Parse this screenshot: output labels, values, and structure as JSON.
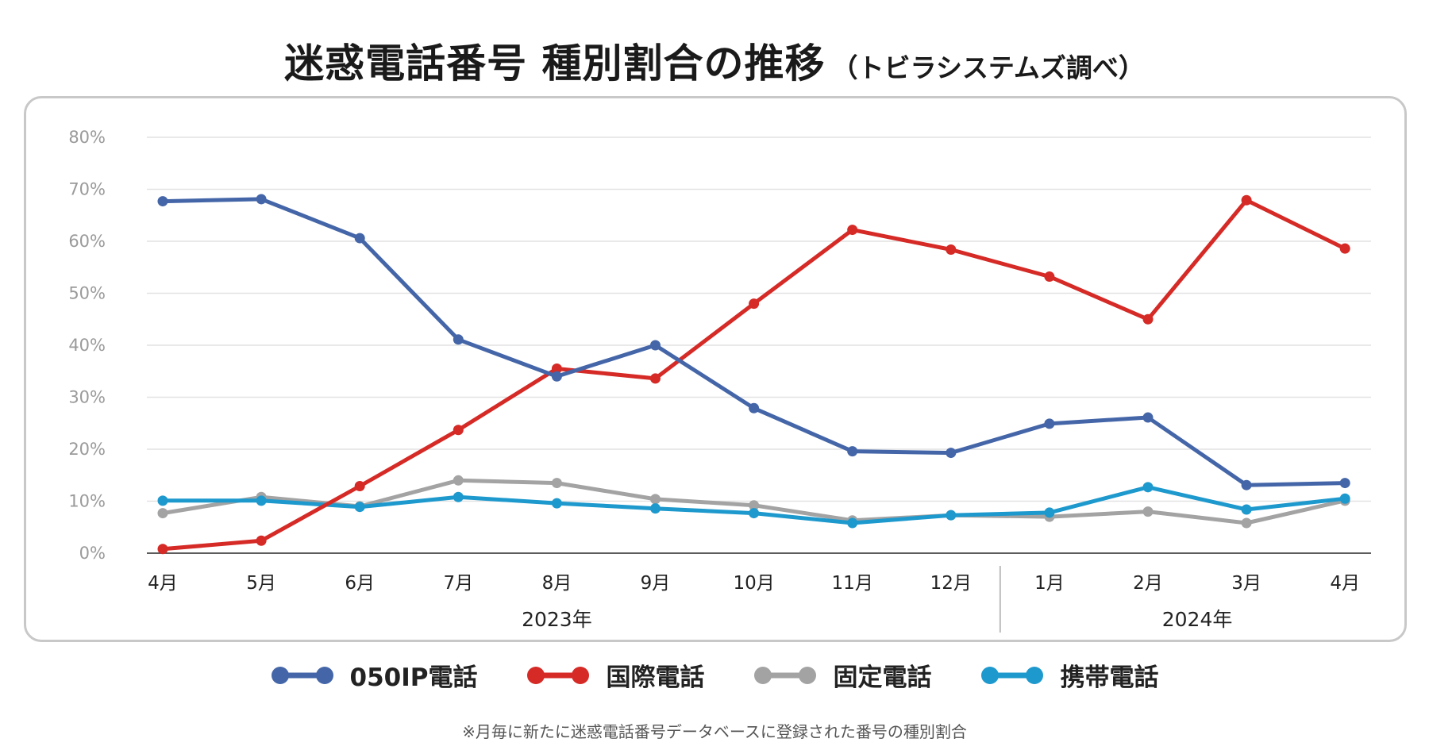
{
  "header": {
    "title": "迷惑電話番号 種別割合の推移",
    "subtitle": "（トビラシステムズ調べ）"
  },
  "footnote": "※月毎に新たに迷惑電話番号データベースに登録された番号の種別割合",
  "chart_data": {
    "type": "line",
    "title": "迷惑電話番号 種別割合の推移",
    "categories": [
      "4月",
      "5月",
      "6月",
      "7月",
      "8月",
      "9月",
      "10月",
      "11月",
      "12月",
      "1月",
      "2月",
      "3月",
      "4月"
    ],
    "year_groups": [
      {
        "label": "2023年",
        "start": 0,
        "end": 8
      },
      {
        "label": "2024年",
        "start": 9,
        "end": 12
      }
    ],
    "ylim": [
      0,
      80
    ],
    "yticks": [
      "0%",
      "10%",
      "20%",
      "30%",
      "40%",
      "50%",
      "60%",
      "70%",
      "80%"
    ],
    "xlabel": "",
    "ylabel": "",
    "grid": true,
    "legend_position": "bottom",
    "series": [
      {
        "name": "050IP電話",
        "color": "#4466a8",
        "values": [
          67.7,
          68.1,
          60.6,
          41.1,
          34.0,
          40.0,
          27.9,
          19.6,
          19.3,
          24.9,
          26.1,
          13.1,
          13.5
        ]
      },
      {
        "name": "国際電話",
        "color": "#d52a26",
        "values": [
          0.8,
          2.4,
          12.9,
          23.7,
          35.5,
          33.6,
          48.0,
          62.2,
          58.4,
          53.2,
          45.0,
          67.9,
          58.6
        ]
      },
      {
        "name": "固定電話",
        "color": "#a3a3a3",
        "values": [
          7.7,
          10.8,
          9.0,
          14.0,
          13.5,
          10.4,
          9.2,
          6.3,
          7.3,
          7.0,
          8.0,
          5.8,
          10.1
        ]
      },
      {
        "name": "携帯電話",
        "color": "#1e99cd",
        "values": [
          10.1,
          10.1,
          8.9,
          10.8,
          9.6,
          8.6,
          7.7,
          5.8,
          7.3,
          7.8,
          12.7,
          8.4,
          10.5
        ]
      }
    ]
  }
}
